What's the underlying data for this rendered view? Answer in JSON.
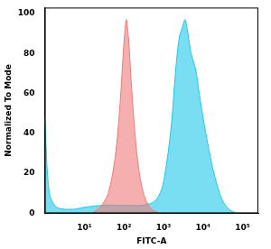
{
  "chart_data": {
    "type": "line",
    "x_label": "FITC-A",
    "y_label": "Normalized To Mode",
    "log": "x",
    "grid": false,
    "xlim": [
      1,
      250000
    ],
    "xticks": [
      {
        "value": 10,
        "label": "10¹"
      },
      {
        "value": 100,
        "label": "10²"
      },
      {
        "value": 1000,
        "label": "10³"
      },
      {
        "value": 10000,
        "label": "10⁴"
      },
      {
        "value": 100000,
        "label": "10⁵"
      }
    ],
    "ylim": [
      0,
      103
    ],
    "yticks": [
      0,
      20,
      40,
      60,
      80,
      100
    ],
    "series": [
      {
        "color": "#f07a7a",
        "x": [
          15,
          25,
          40,
          60,
          80,
          100,
          115,
          130,
          160,
          200,
          260,
          350,
          500,
          800
        ],
        "values": [
          0,
          3,
          10,
          28,
          55,
          85,
          97,
          88,
          60,
          35,
          17,
          7,
          2,
          0
        ]
      },
      {
        "color": "#20c8e8",
        "x": [
          1,
          1.3,
          2,
          5,
          10,
          30,
          100,
          300,
          600,
          900,
          1200,
          1600,
          2000,
          2500,
          3000,
          3500,
          4000,
          5000,
          6500,
          8000,
          10000,
          14000,
          20000,
          30000,
          45000,
          70000
        ],
        "values": [
          48,
          10,
          3,
          2,
          3,
          4,
          4,
          4,
          6,
          12,
          25,
          45,
          70,
          88,
          93,
          97,
          92,
          80,
          72,
          60,
          48,
          32,
          18,
          7,
          2,
          0
        ]
      }
    ]
  }
}
